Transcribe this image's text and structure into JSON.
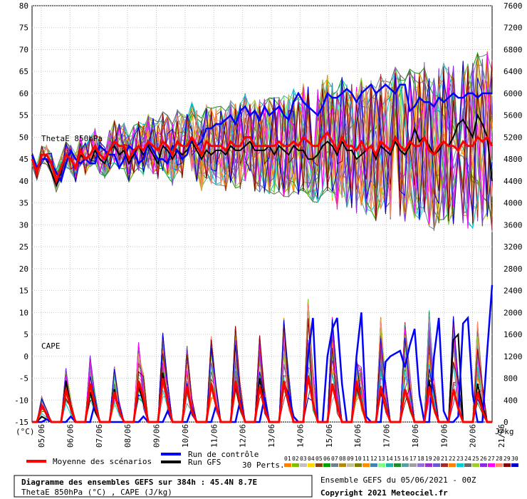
{
  "chart_data": {
    "type": "line",
    "x_dates": [
      "05/06",
      "06/06",
      "07/06",
      "08/06",
      "09/06",
      "10/06",
      "11/06",
      "12/06",
      "13/06",
      "14/06",
      "15/06",
      "16/06",
      "17/06",
      "18/06",
      "19/06",
      "20/06",
      "21/06"
    ],
    "x_unit": "(°C)",
    "y_left": {
      "min": -15,
      "max": 80,
      "ticks": [
        -15,
        -10,
        -5,
        0,
        5,
        10,
        15,
        20,
        25,
        30,
        35,
        40,
        45,
        50,
        55,
        60,
        65,
        70,
        75,
        80
      ]
    },
    "y_right": {
      "min": 0,
      "max": 7600,
      "unit": "J/kg",
      "ticks": [
        0,
        400,
        800,
        1200,
        1600,
        2000,
        2400,
        2800,
        3200,
        3600,
        4000,
        4400,
        4800,
        5200,
        5600,
        6000,
        6400,
        6800,
        7200,
        7600
      ]
    },
    "panel_labels": {
      "thetae": "ThetaE 850hPa",
      "cape": "CAPE"
    },
    "series": [
      {
        "name": "Moyenne des scénarios",
        "color": "#ff0000",
        "thetae": [
          45,
          42,
          46,
          46,
          44,
          40,
          43,
          46,
          45,
          43,
          47,
          45,
          46,
          48,
          46,
          45,
          47,
          49,
          48,
          48,
          45,
          47,
          48,
          47,
          49,
          48,
          47,
          49,
          48,
          46,
          49,
          48,
          48,
          50,
          48,
          46,
          49,
          48,
          48,
          48,
          47,
          49,
          48,
          48,
          50,
          50,
          48,
          48,
          48,
          48,
          48,
          49,
          48,
          48,
          49,
          48,
          50,
          49,
          48,
          48,
          50,
          51,
          49,
          47,
          50,
          48,
          48,
          47,
          49,
          47,
          48,
          46,
          49,
          48,
          47,
          50,
          48,
          47,
          49,
          48,
          48,
          50,
          47,
          46,
          48,
          49,
          48,
          48,
          47,
          49,
          48,
          48,
          50,
          49,
          50,
          48
        ],
        "cape": [
          0,
          0,
          300,
          150,
          0,
          0,
          0,
          600,
          250,
          0,
          0,
          0,
          700,
          300,
          0,
          0,
          0,
          550,
          200,
          0,
          0,
          0,
          750,
          450,
          0,
          0,
          0,
          800,
          350,
          0,
          0,
          0,
          650,
          200,
          0,
          0,
          0,
          700,
          300,
          0,
          0,
          0,
          750,
          300,
          0,
          0,
          0,
          650,
          250,
          0,
          0,
          0,
          750,
          350,
          0,
          0,
          0,
          850,
          350,
          0,
          0,
          0,
          700,
          300,
          0,
          0,
          0,
          750,
          350,
          0,
          0,
          0,
          650,
          250,
          0,
          0,
          0,
          600,
          300,
          0,
          0,
          0,
          650,
          250,
          0,
          0,
          0,
          600,
          250,
          0,
          0,
          0,
          550,
          200,
          0,
          0
        ]
      },
      {
        "name": "Run de contrôle",
        "color": "#0000ff",
        "thetae": [
          46,
          43,
          45,
          45,
          44,
          42,
          40,
          44,
          47,
          45,
          44,
          45,
          44,
          44,
          48,
          47,
          46,
          46,
          43,
          45,
          48,
          47,
          44,
          45,
          49,
          47,
          45,
          45,
          44,
          48,
          47,
          45,
          46,
          50,
          48,
          49,
          52,
          52,
          53,
          53,
          54,
          55,
          53,
          56,
          57,
          55,
          56,
          54,
          57,
          55,
          56,
          57,
          55,
          54,
          58,
          60,
          58,
          57,
          56,
          55,
          57,
          60,
          59,
          59,
          60,
          61,
          60,
          58,
          60,
          61,
          62,
          60,
          61,
          62,
          61,
          60,
          62,
          62,
          56,
          57,
          59,
          58,
          58,
          57,
          59,
          58,
          59,
          60,
          59,
          59,
          60,
          60,
          59,
          60,
          60,
          60
        ],
        "cape": [
          0,
          0,
          0,
          50,
          0,
          0,
          0,
          0,
          100,
          0,
          0,
          0,
          0,
          350,
          0,
          0,
          0,
          0,
          0,
          0,
          0,
          0,
          0,
          100,
          0,
          0,
          0,
          0,
          200,
          0,
          0,
          0,
          0,
          250,
          0,
          0,
          0,
          0,
          300,
          0,
          0,
          0,
          0,
          400,
          0,
          0,
          0,
          0,
          450,
          0,
          0,
          0,
          700,
          500,
          100,
          0,
          0,
          1200,
          1900,
          0,
          0,
          1200,
          1700,
          1900,
          700,
          0,
          0,
          1200,
          2000,
          100,
          0,
          0,
          0,
          1100,
          1200,
          1250,
          1300,
          1000,
          1400,
          1700,
          500,
          0,
          0,
          1200,
          1900,
          200,
          0,
          0,
          100,
          1800,
          1900,
          500,
          0,
          0,
          1300,
          2500
        ]
      },
      {
        "name": "Run GFS",
        "color": "#000000",
        "thetae": [
          46,
          42,
          45,
          45,
          42,
          39,
          42,
          46,
          45,
          43,
          46,
          45,
          44,
          47,
          45,
          44,
          47,
          48,
          46,
          47,
          44,
          46,
          48,
          46,
          48,
          46,
          44,
          48,
          47,
          45,
          47,
          46,
          47,
          49,
          47,
          45,
          47,
          46,
          47,
          47,
          46,
          48,
          47,
          47,
          48,
          49,
          47,
          47,
          47,
          48,
          46,
          48,
          47,
          46,
          48,
          47,
          47,
          45,
          45,
          46,
          48,
          49,
          48,
          46,
          49,
          47,
          47,
          45,
          46,
          47,
          48,
          45,
          48,
          47,
          46,
          49,
          47,
          46,
          48,
          52,
          49,
          50,
          48,
          46,
          47,
          49,
          48,
          50,
          53,
          54,
          52,
          50,
          55,
          53,
          50,
          40
        ],
        "cape": [
          0,
          0,
          100,
          50,
          0,
          0,
          0,
          750,
          300,
          0,
          0,
          0,
          550,
          200,
          0,
          0,
          0,
          600,
          200,
          0,
          0,
          0,
          650,
          350,
          0,
          0,
          0,
          900,
          400,
          0,
          0,
          0,
          600,
          200,
          0,
          0,
          0,
          700,
          300,
          0,
          0,
          0,
          650,
          250,
          0,
          0,
          0,
          800,
          300,
          0,
          0,
          0,
          700,
          300,
          100,
          0,
          0,
          800,
          350,
          0,
          0,
          0,
          700,
          300,
          0,
          0,
          0,
          650,
          350,
          0,
          0,
          0,
          550,
          250,
          0,
          0,
          0,
          600,
          250,
          0,
          0,
          0,
          750,
          250,
          0,
          0,
          0,
          1500,
          1600,
          0,
          0,
          0,
          700,
          300,
          0,
          0
        ]
      }
    ],
    "perturbation_count_label": "30 Perts.",
    "perturbation_codes": [
      "01",
      "02",
      "03",
      "04",
      "05",
      "06",
      "07",
      "08",
      "09",
      "10",
      "11",
      "12",
      "13",
      "14",
      "15",
      "16",
      "17",
      "18",
      "19",
      "20",
      "21",
      "22",
      "23",
      "24",
      "25",
      "26",
      "27",
      "28",
      "29",
      "30"
    ],
    "perturbation_colors": [
      "#ff7f00",
      "#7fbf00",
      "#c0c0c0",
      "#ffd700",
      "#8b4513",
      "#00a000",
      "#708090",
      "#b8860b",
      "#bfbf9f",
      "#808000",
      "#ff8c00",
      "#4682b4",
      "#7fff7f",
      "#20b2aa",
      "#228b22",
      "#5f9ea0",
      "#a0a0a0",
      "#9370db",
      "#9932cc",
      "#6a5acd",
      "#a52a2a",
      "#ff8000",
      "#00ced1",
      "#696969",
      "#9acd32",
      "#8a2be2",
      "#ff00ff",
      "#ff8c69",
      "#8b0000",
      "#0000cd"
    ],
    "legend": {
      "mean_label": "Moyenne des scénarios",
      "control_label": "Run de contrôle",
      "gfs_label": "Run GFS"
    },
    "footer": {
      "title": "Diagramme des ensembles GEFS sur 384h : 45.4N 8.7E",
      "subtitle": "ThetaE 850hPa (°C) , CAPE (J/kg)",
      "run_info": "Ensemble GEFS du 05/06/2021 - 00Z",
      "copyright": "Copyright 2021 Meteociel.fr"
    },
    "grid": true
  }
}
